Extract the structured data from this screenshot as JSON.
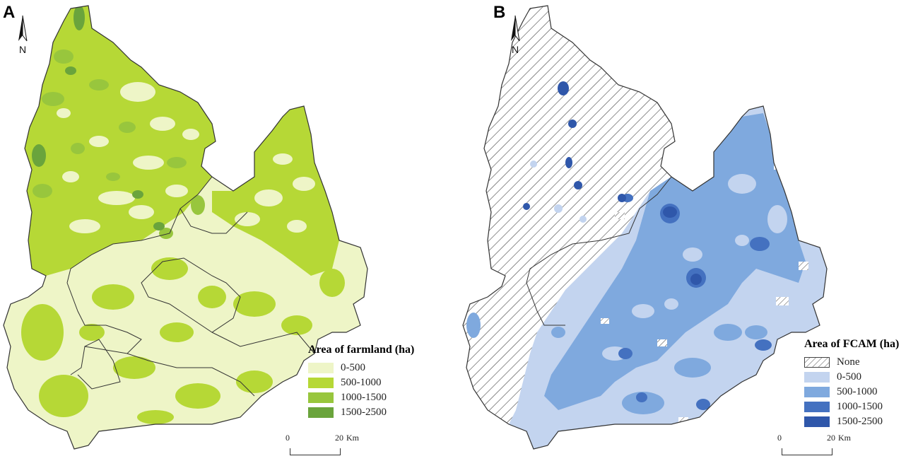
{
  "panels": [
    {
      "letter": "A",
      "north_label": "N",
      "legend_title": "Area of farmland (ha)",
      "legend": [
        {
          "label": "0-500",
          "color": "#eef5c7"
        },
        {
          "label": "500-1000",
          "color": "#b6d836"
        },
        {
          "label": "1000-1500",
          "color": "#98c63d"
        },
        {
          "label": "1500-2500",
          "color": "#6aa43c"
        }
      ],
      "scale": {
        "start": "0",
        "end": "20",
        "unit": "Km"
      }
    },
    {
      "letter": "B",
      "north_label": "N",
      "legend_title": "Area of FCAM (ha)",
      "legend": [
        {
          "label": "None",
          "color": "hatch"
        },
        {
          "label": "0-500",
          "color": "#c3d4ef"
        },
        {
          "label": "500-1000",
          "color": "#7fa9de"
        },
        {
          "label": "1000-1500",
          "color": "#4471c0"
        },
        {
          "label": "1500-2500",
          "color": "#2f57aa"
        }
      ],
      "scale": {
        "start": "0",
        "end": "20",
        "unit": "Km"
      }
    }
  ]
}
